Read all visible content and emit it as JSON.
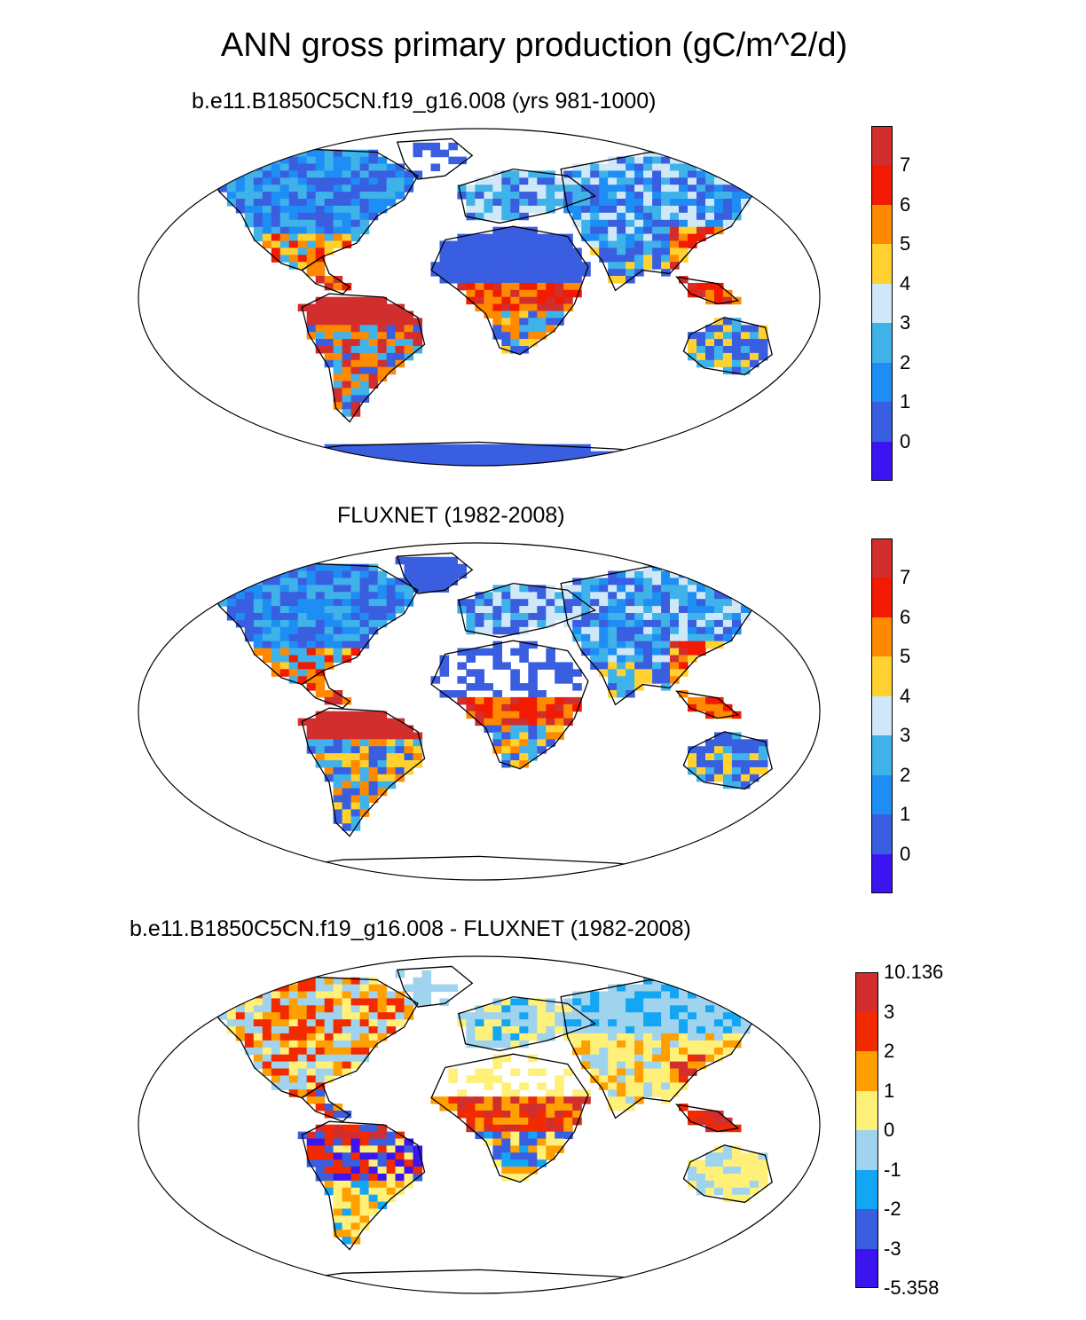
{
  "title": "ANN gross primary production (gC/m^2/d)",
  "panels": [
    {
      "title": "b.e11.B1850C5CN.f19_g16.008 (yrs 981-1000)",
      "colorbar": {
        "colors": [
          "#3b14f0",
          "#3a5ee0",
          "#1e8ef5",
          "#3fb2ea",
          "#cfe8f8",
          "#ffd230",
          "#ff8a00",
          "#f21a00",
          "#d22e2e"
        ],
        "labels": [
          "0",
          "1",
          "2",
          "3",
          "4",
          "5",
          "6",
          "7"
        ]
      }
    },
    {
      "title": "FLUXNET (1982-2008)",
      "colorbar": {
        "colors": [
          "#3b14f0",
          "#3a5ee0",
          "#1e8ef5",
          "#3fb2ea",
          "#cfe8f8",
          "#ffd230",
          "#ff8a00",
          "#f21a00",
          "#d22e2e"
        ],
        "labels": [
          "0",
          "1",
          "2",
          "3",
          "4",
          "5",
          "6",
          "7"
        ]
      }
    },
    {
      "title": "b.e11.B1850C5CN.f19_g16.008 - FLUXNET (1982-2008)",
      "colorbar": {
        "colors": [
          "#3b14f0",
          "#3a5ee0",
          "#12a6f4",
          "#9fd3ee",
          "#fff07a",
          "#ffa000",
          "#f22a00",
          "#d22e2e"
        ],
        "labels": [
          "-5.358",
          "-3",
          "-2",
          "-1",
          "0",
          "1",
          "2",
          "3",
          "10.136"
        ]
      }
    }
  ],
  "palette": {
    "land_outline": "#000000",
    "ocean": "#ffffff"
  }
}
